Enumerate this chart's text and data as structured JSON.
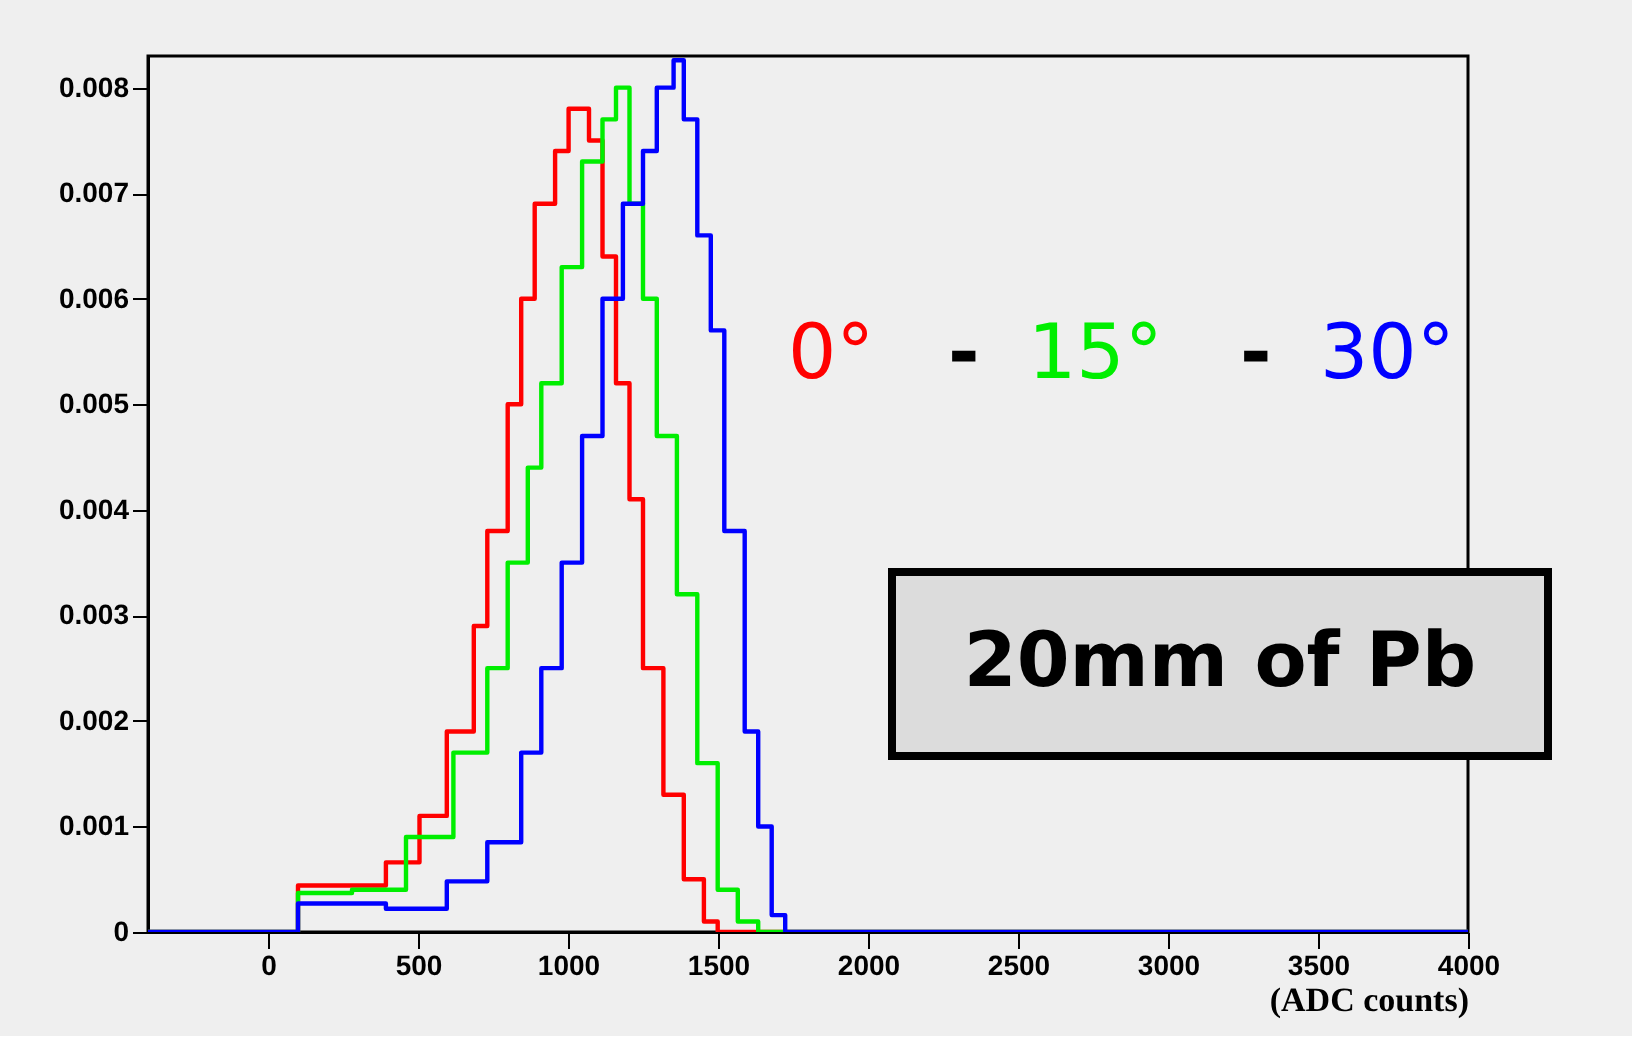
{
  "chart_data": {
    "type": "step",
    "xlabel": "(ADC counts)",
    "xlim": [
      -400,
      4000
    ],
    "xticks": [
      0,
      500,
      1000,
      1500,
      2000,
      2500,
      3000,
      3500,
      4000
    ],
    "ylim": [
      0,
      0.0083
    ],
    "yticks": [
      0,
      0.001,
      0.002,
      0.003,
      0.004,
      0.005,
      0.006,
      0.007,
      0.008
    ],
    "grid": false,
    "legend": "right",
    "line_style": "solid",
    "series": [
      {
        "name": "0°",
        "color": "#ff0000",
        "x": [
          -400,
          100,
          393,
          505,
          596,
          686,
          731,
          799,
          844,
          889,
          957,
          1002,
          1070,
          1115,
          1160,
          1205,
          1250,
          1318,
          1386,
          1453,
          1499,
          4000
        ],
        "values": [
          0,
          0.00044,
          0.00066,
          0.0011,
          0.0019,
          0.0029,
          0.0038,
          0.005,
          0.006,
          0.0069,
          0.0074,
          0.0078,
          0.0075,
          0.0064,
          0.0052,
          0.0041,
          0.0025,
          0.0013,
          0.0005,
          0.0001,
          0,
          0
        ]
      },
      {
        "name": "15°",
        "color": "#00ee00",
        "x": [
          -400,
          100,
          280,
          460,
          618,
          731,
          799,
          866,
          911,
          979,
          1047,
          1115,
          1160,
          1205,
          1250,
          1296,
          1363,
          1431,
          1499,
          1566,
          1634,
          4000
        ],
        "values": [
          0,
          0.00037,
          0.0004,
          0.0009,
          0.0017,
          0.0025,
          0.0035,
          0.0044,
          0.0052,
          0.0063,
          0.0073,
          0.0077,
          0.008,
          0.0069,
          0.006,
          0.0047,
          0.0032,
          0.0016,
          0.0004,
          0.0001,
          0,
          0
        ]
      },
      {
        "name": "30°",
        "color": "#0000ff",
        "x": [
          -400,
          100,
          393,
          596,
          731,
          844,
          911,
          979,
          1047,
          1115,
          1183,
          1250,
          1296,
          1352,
          1386,
          1431,
          1476,
          1521,
          1589,
          1634,
          1679,
          1724,
          4000
        ],
        "values": [
          0,
          0.00027,
          0.00022,
          0.00048,
          0.00085,
          0.0017,
          0.0025,
          0.0035,
          0.0047,
          0.006,
          0.0069,
          0.0074,
          0.008,
          0.00826,
          0.0077,
          0.0066,
          0.0057,
          0.0038,
          0.0019,
          0.001,
          0.00016,
          0,
          0
        ]
      }
    ],
    "annotations": [
      "-",
      "-",
      "20mm of Pb"
    ]
  }
}
